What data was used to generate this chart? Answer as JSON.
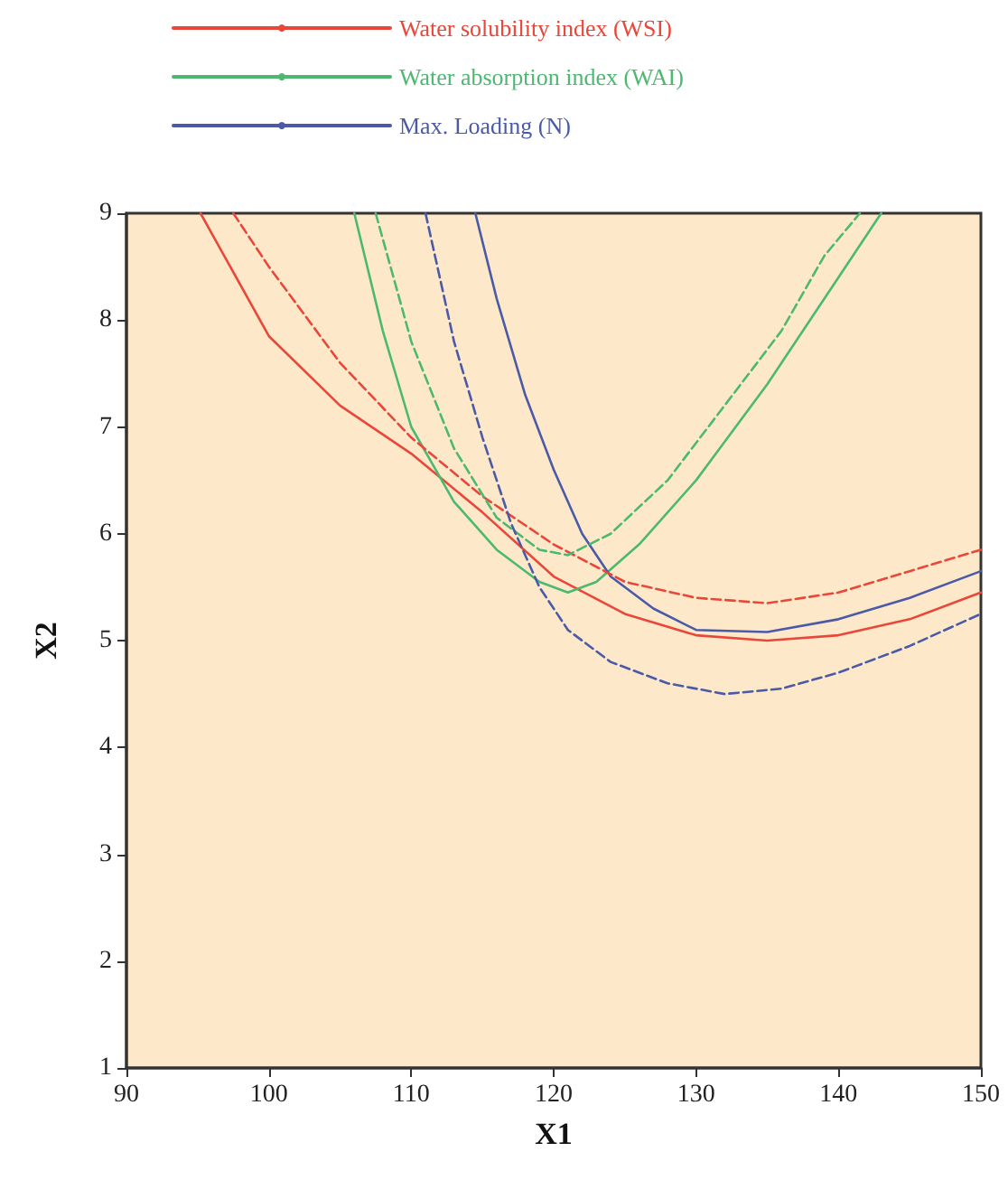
{
  "chart_data": {
    "type": "line",
    "xlabel": "X1",
    "ylabel": "X2",
    "xlim": [
      90,
      150
    ],
    "xticks": [
      90,
      100,
      110,
      120,
      130,
      140,
      150
    ],
    "ylim": [
      1,
      9
    ],
    "yticks": [
      1,
      2,
      3,
      4,
      5,
      6,
      7,
      8,
      9
    ],
    "grid": false,
    "legend": "top",
    "marker": "none",
    "series": [
      {
        "name": "Water solubility index (WSI)",
        "color": "#e8473a",
        "line_style": "solid",
        "x": [
          95.2,
          100,
          105,
          110,
          115,
          120,
          125,
          130,
          135,
          140,
          145,
          150
        ],
        "values": [
          9,
          7.85,
          7.2,
          6.75,
          6.2,
          5.6,
          5.25,
          5.05,
          5,
          5.05,
          5.2,
          5.45
        ]
      },
      {
        "name": "Water absorption index (WAI)",
        "color": "#4cb870",
        "line_style": "solid",
        "x": [
          106,
          108,
          110,
          113,
          116,
          119,
          121,
          123,
          126,
          130,
          135,
          140,
          143
        ],
        "values": [
          9,
          7.9,
          7,
          6.3,
          5.85,
          5.55,
          5.45,
          5.55,
          5.9,
          6.5,
          7.4,
          8.4,
          9
        ]
      },
      {
        "name": "Max. Loading (N)",
        "color": "#4a5aa8",
        "line_style": "solid",
        "x": [
          114.5,
          116,
          118,
          120,
          122,
          124,
          127,
          130,
          135,
          140,
          145,
          150
        ],
        "values": [
          9,
          8.2,
          7.3,
          6.6,
          6,
          5.6,
          5.3,
          5.1,
          5.08,
          5.2,
          5.4,
          5.65
        ]
      },
      {
        "color": "#e8473a",
        "line_style": "dashed",
        "x": [
          97.5,
          100,
          105,
          110,
          115,
          120,
          125,
          130,
          135,
          140,
          145,
          150
        ],
        "values": [
          9,
          8.5,
          7.6,
          6.9,
          6.35,
          5.9,
          5.55,
          5.4,
          5.35,
          5.45,
          5.65,
          5.85
        ]
      },
      {
        "color": "#4cb870",
        "line_style": "dashed",
        "x": [
          107.5,
          110,
          113,
          116,
          119,
          121,
          124,
          128,
          132,
          136,
          139,
          141.5
        ],
        "values": [
          9,
          7.8,
          6.8,
          6.15,
          5.85,
          5.8,
          6,
          6.5,
          7.2,
          7.9,
          8.6,
          9
        ]
      },
      {
        "color": "#4a5aa8",
        "line_style": "dashed",
        "x": [
          111,
          113,
          115,
          117,
          119,
          121,
          124,
          128,
          132,
          136,
          140,
          145,
          150
        ],
        "values": [
          9,
          7.8,
          6.9,
          6.1,
          5.5,
          5.1,
          4.8,
          4.6,
          4.5,
          4.55,
          4.7,
          4.95,
          5.25
        ]
      }
    ]
  }
}
